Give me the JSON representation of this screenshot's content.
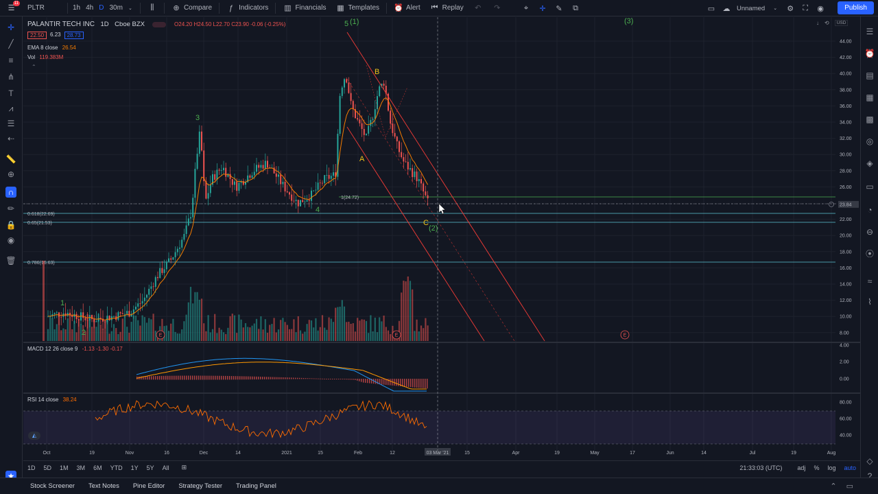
{
  "topbar": {
    "symbol": "PLTR",
    "intervals": [
      "1h",
      "4h",
      "D",
      "30m"
    ],
    "active_interval": "D",
    "compare": "Compare",
    "indicators": "Indicators",
    "financials": "Financials",
    "templates": "Templates",
    "alert": "Alert",
    "replay": "Replay",
    "layout_name": "Unnamed",
    "publish": "Publish",
    "notification_count": "11"
  },
  "legend": {
    "title": "PALANTIR TECH INC",
    "interval": "1D",
    "exchange": "Cboe BZX",
    "ohlc": "O24.20 H24.50 L22.70 C23.90 -0.06 (-0.25%)",
    "bid": "22.50",
    "spread": "6.23",
    "ask": "28.73",
    "ema_label": "EMA 8 close",
    "ema_value": "26.54",
    "vol_label": "Vol",
    "vol_value": "119.383M",
    "macd_label": "MACD 12 26 close 9",
    "macd_values": "-1.13  -1.30  -0.17",
    "rsi_label": "RSI 14 close",
    "rsi_value": "38.24"
  },
  "price_axis": [
    "44.00",
    "42.00",
    "40.00",
    "38.00",
    "36.00",
    "34.00",
    "32.00",
    "30.00",
    "28.00",
    "26.00",
    "23.84",
    "22.00",
    "20.00",
    "18.00",
    "16.00",
    "14.00",
    "12.00",
    "10.00",
    "8.00"
  ],
  "macd_axis": [
    "4.00",
    "2.00",
    "0.00"
  ],
  "rsi_axis": [
    "80.00",
    "60.00",
    "40.00"
  ],
  "time_axis": [
    "Oct",
    "19",
    "Nov",
    "16",
    "Dec",
    "14",
    "2021",
    "15",
    "Feb",
    "12",
    "03 Mar '21",
    "15",
    "Apr",
    "19",
    "May",
    "17",
    "Jun",
    "14",
    "Jul",
    "19",
    "Aug"
  ],
  "fib_levels": [
    "0.618(22.69)",
    "0.65(21.53)",
    "0.786(16.63)"
  ],
  "fib_extension": "1(24.72)",
  "annotations": {
    "wave1": "1",
    "wave2": "2",
    "wave3": "3",
    "wave4": "4",
    "wave5": "5",
    "wave1_paren": "(1)",
    "wave2_paren": "(2)",
    "wave3_paren": "(3)",
    "A": "A",
    "B": "B",
    "C": "C",
    "earnings": "E"
  },
  "time_frames": [
    "1D",
    "5D",
    "1M",
    "3M",
    "6M",
    "YTD",
    "1Y",
    "5Y",
    "All"
  ],
  "clock": "21:33:03 (UTC)",
  "scale_opts": [
    "adj",
    "%",
    "log",
    "auto"
  ],
  "bottom_tabs": [
    "Stock Screener",
    "Text Notes",
    "Pine Editor",
    "Strategy Tester",
    "Trading Panel"
  ],
  "colors": {
    "background": "#131722",
    "up": "#26a69a",
    "down": "#ef5350",
    "ema": "#f57c00",
    "wave_green": "#4caf50",
    "wave_yellow": "#f0c419",
    "fib": "#5ec6d6",
    "channel": "#e53935",
    "macd": "#2196f3",
    "signal": "#ff9800",
    "rsi": "#ff6d00",
    "accent": "#2962ff"
  }
}
